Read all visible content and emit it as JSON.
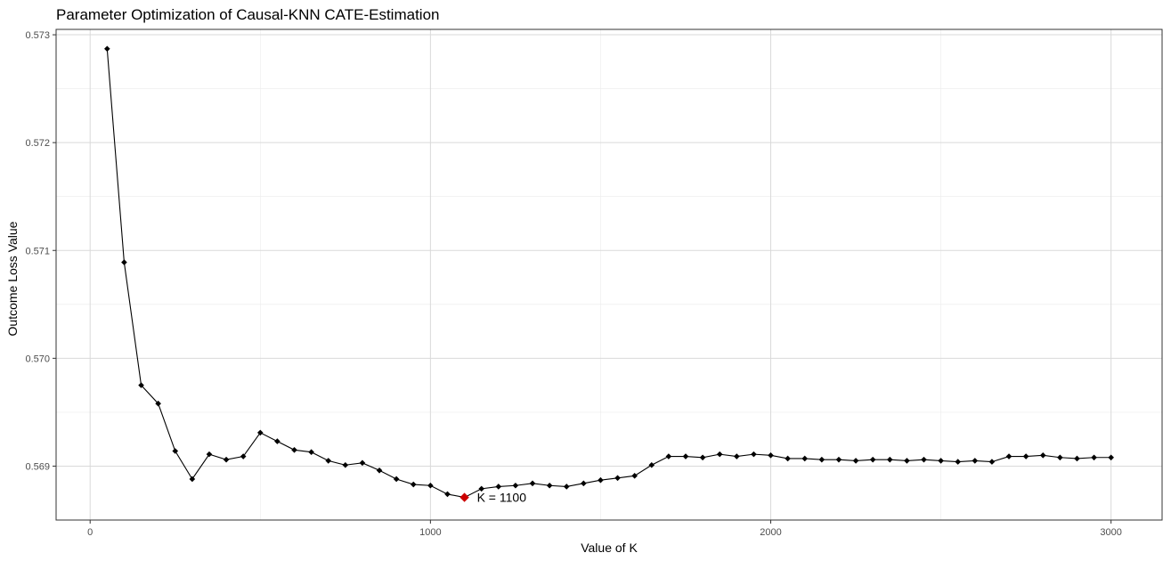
{
  "chart_data": {
    "type": "line",
    "title": "Parameter Optimization of Causal-KNN CATE-Estimation",
    "xlabel": "Value of K",
    "ylabel": "Outcome Loss Value",
    "xlim": [
      -100,
      3150
    ],
    "ylim": [
      0.5685,
      0.57305
    ],
    "x_ticks": [
      0,
      1000,
      2000,
      3000
    ],
    "x_tick_labels": [
      "0",
      "1000",
      "2000",
      "3000"
    ],
    "y_ticks": [
      0.569,
      0.57,
      0.571,
      0.572,
      0.573
    ],
    "y_tick_labels": [
      "0.569",
      "0.570",
      "0.571",
      "0.572",
      "0.573"
    ],
    "grid": true,
    "series": [
      {
        "x": [
          50,
          100,
          150,
          200,
          250,
          300,
          350,
          400,
          450,
          500,
          550,
          600,
          650,
          700,
          750,
          800,
          850,
          900,
          950,
          1000,
          1050,
          1100,
          1150,
          1200,
          1250,
          1300,
          1350,
          1400,
          1450,
          1500,
          1550,
          1600,
          1650,
          1700,
          1750,
          1800,
          1850,
          1900,
          1950,
          2000,
          2050,
          2100,
          2150,
          2200,
          2250,
          2300,
          2350,
          2400,
          2450,
          2500,
          2550,
          2600,
          2650,
          2700,
          2750,
          2800,
          2850,
          2900,
          2950,
          3000
        ],
        "y": [
          0.57287,
          0.57089,
          0.56975,
          0.56958,
          0.56914,
          0.56888,
          0.56911,
          0.56906,
          0.56909,
          0.56931,
          0.56923,
          0.56915,
          0.56913,
          0.56905,
          0.56901,
          0.56903,
          0.56896,
          0.56888,
          0.56883,
          0.56882,
          0.56874,
          0.56871,
          0.56879,
          0.56881,
          0.56882,
          0.56884,
          0.56882,
          0.56881,
          0.56884,
          0.56887,
          0.56889,
          0.56891,
          0.56901,
          0.56909,
          0.56909,
          0.56908,
          0.56911,
          0.56909,
          0.56911,
          0.5691,
          0.56907,
          0.56907,
          0.56906,
          0.56906,
          0.56905,
          0.56906,
          0.56906,
          0.56905,
          0.56906,
          0.56905,
          0.56904,
          0.56905,
          0.56904,
          0.56909,
          0.56909,
          0.5691,
          0.56908,
          0.56907,
          0.56908,
          0.56908
        ],
        "color": "#000000"
      }
    ],
    "highlight": {
      "x": 1100,
      "y": 0.56871,
      "label": "K =  1100",
      "color": "#cc0000"
    },
    "panel_background": "#ffffff",
    "grid_color": "#d9d9d9",
    "border_color": "#333333"
  }
}
